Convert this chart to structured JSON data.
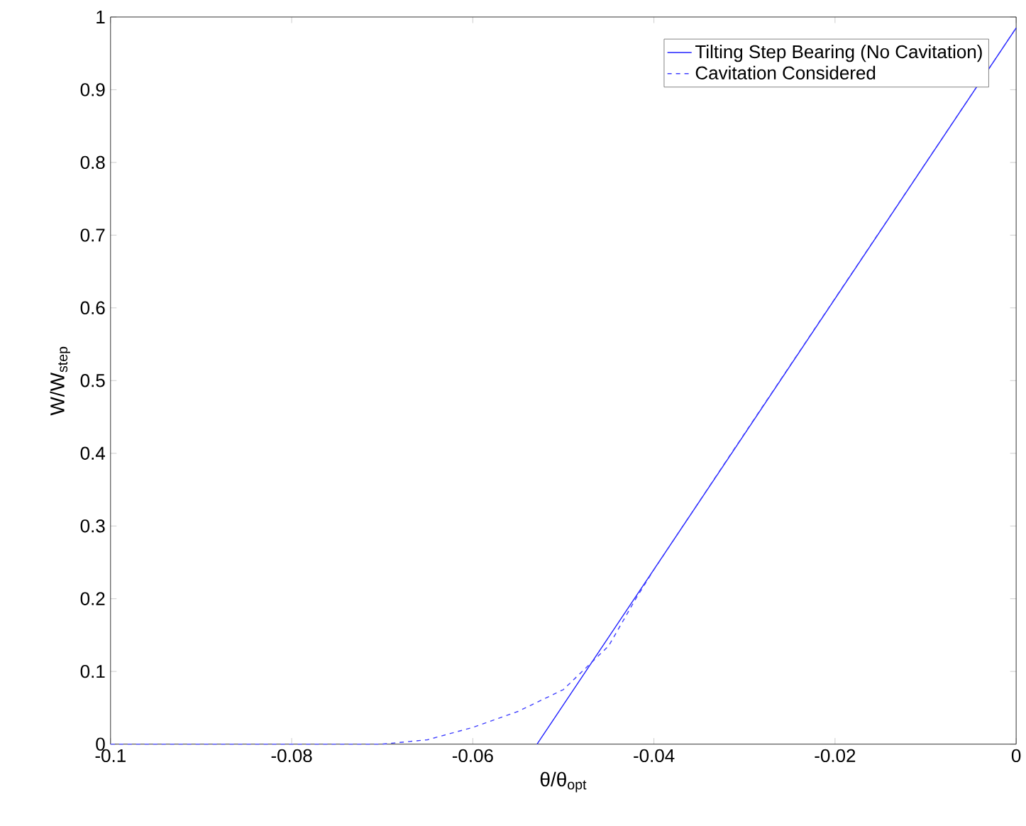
{
  "chart_data": {
    "type": "line",
    "xlabel": "θ/θ$_{opt}$",
    "ylabel": "W/W$_{step}$",
    "xlim": [
      -0.1,
      0
    ],
    "ylim": [
      0,
      1
    ],
    "xticks": [
      -0.1,
      -0.08,
      -0.06,
      -0.04,
      -0.02,
      0
    ],
    "yticks": [
      0,
      0.1,
      0.2,
      0.3,
      0.4,
      0.5,
      0.6,
      0.7,
      0.8,
      0.9,
      1
    ],
    "legend": "top right",
    "grid": false,
    "series": [
      {
        "name": "Tilting Step Bearing (No Cavitation)",
        "color": "#2020ff",
        "line_style": "solid",
        "x": [
          -0.0529,
          0
        ],
        "values": [
          0,
          0.985
        ]
      },
      {
        "name": "Cavitation Considered",
        "color": "#4040ff",
        "line_style": "dashed",
        "x": [
          -0.1,
          -0.08,
          -0.07,
          -0.065,
          -0.06,
          -0.055,
          -0.05,
          -0.045,
          -0.042,
          -0.04,
          -0.03,
          -0.02,
          -0.01,
          0
        ],
        "values": [
          0,
          0,
          0,
          0.006,
          0.023,
          0.045,
          0.075,
          0.135,
          0.2,
          0.24,
          0.427,
          0.613,
          0.799,
          0.985
        ]
      }
    ]
  }
}
